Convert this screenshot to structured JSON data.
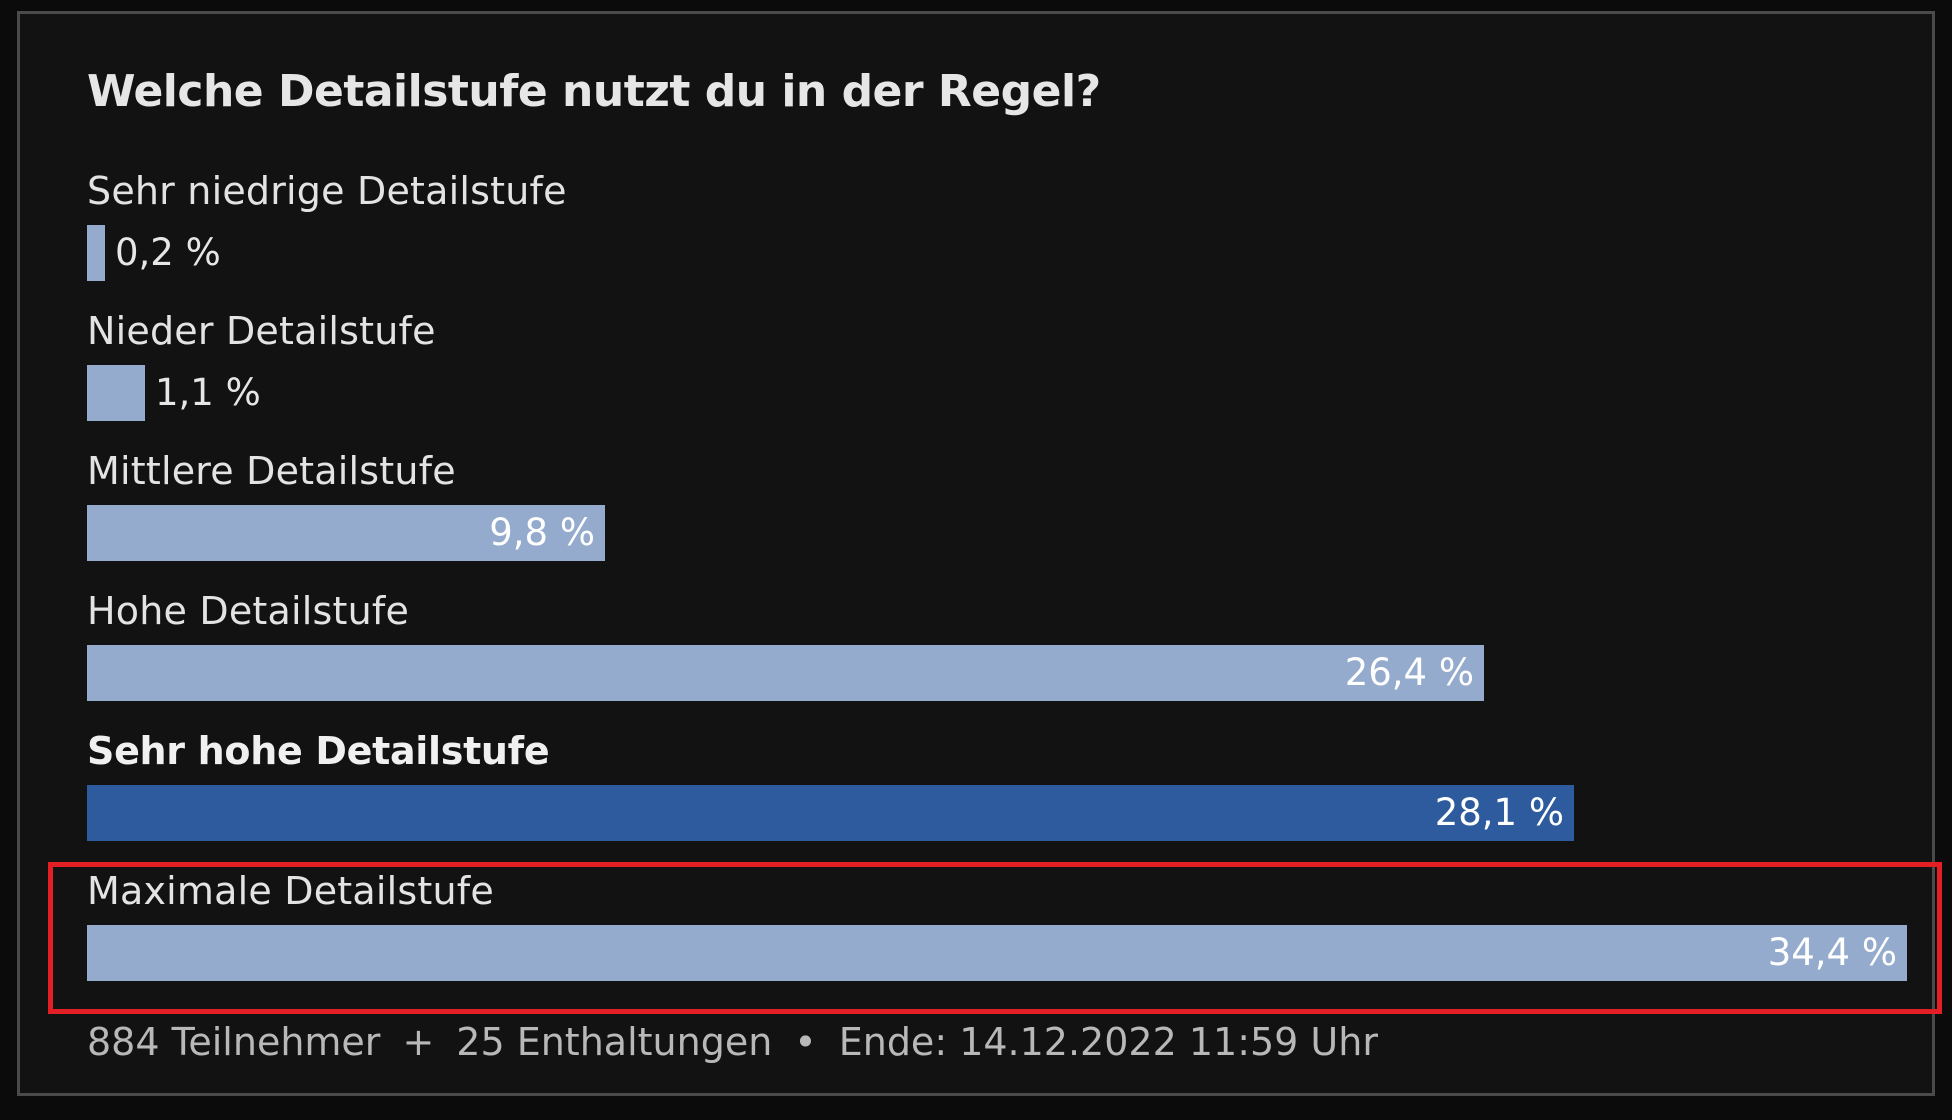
{
  "chart_data": {
    "type": "bar",
    "title": "Welche Detailstufe nutzt du in der Regel?",
    "categories": [
      "Sehr niedrige Detailstufe",
      "Nieder Detailstufe",
      "Mittlere Detailstufe",
      "Hohe Detailstufe",
      "Sehr hohe Detailstufe",
      "Maximale Detailstufe"
    ],
    "values": [
      0.2,
      1.1,
      9.8,
      26.4,
      28.1,
      34.4
    ],
    "value_labels": [
      "0,2 %",
      "1,1 %",
      "9,8 %",
      "26,4 %",
      "28,1 %",
      "34,4 %"
    ],
    "selected_index": 4,
    "highlighted_index": 5,
    "xlim": [
      0,
      34.4
    ],
    "orientation": "horizontal",
    "colors": {
      "bar": "#94abcd",
      "bar_selected": "#2d5b9e",
      "highlight_box": "#e31e24"
    }
  },
  "footer": {
    "participants": "884 Teilnehmer",
    "sep1": "+",
    "abstentions": "25 Enthaltungen",
    "sep2": "•",
    "end": "Ende: 14.12.2022 11:59 Uhr"
  }
}
